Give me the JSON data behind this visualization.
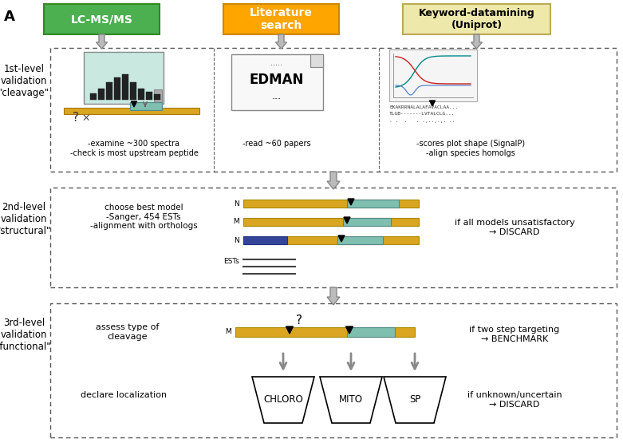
{
  "title_letter": "A",
  "bg_color": "#ffffff",
  "box1_color": "#4CAF50",
  "box2_color": "#FFA500",
  "box3_color": "#EEE8AA",
  "box1_text": "LC-MS/MS",
  "box2_text": "Literature\nsearch",
  "box3_text": "Keyword-datamining\n(Uniprot)",
  "level1_label": "1st-level\nvalidation\n\"cleavage\"",
  "level2_label": "2nd-level\nvalidation\n\"structural\"",
  "level3_label": "3rd-level\nvalidation\n\"functional\"",
  "level1_text1": "-examine ~300 spectra\n-check is most upstream peptide",
  "level1_text2": "-read ~60 papers",
  "level1_text3": "-scores plot shape (SignalP)\n-align species homolgs",
  "level2_text1": "choose best model\n-Sanger, 454 ESTs\n-alignment with orthologs",
  "level2_text2": "if all models unsatisfactory\n→ DISCARD",
  "level3_text1": "assess type of\ncleavage",
  "level3_text2": "if two step targeting\n→ BENCHMARK",
  "level3_text3": "if unknown/uncertain\n→ DISCARD",
  "level3_text4": "declare localization",
  "funnel1": "CHLORO",
  "funnel2": "MITO",
  "funnel3": "SP",
  "arrow_color": "#999999",
  "dashed_color": "#666666",
  "bar_gold": "#DAA520",
  "bar_teal": "#7FBFAF",
  "bar_blue": "#334499"
}
